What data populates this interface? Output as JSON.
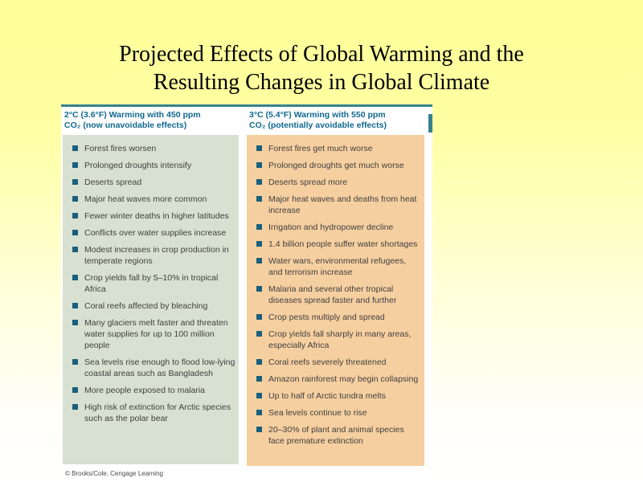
{
  "slide": {
    "title": {
      "line1": "Projected Effects of Global Warming and the",
      "line2": "Resulting Changes in Global Climate"
    },
    "figure": {
      "columns": [
        {
          "id": "450ppm",
          "header_line1": "2°C (3.6°F) Warming with 450 ppm",
          "header_line2": "CO₂ (now unavoidable effects)",
          "items": [
            "Forest fires worsen",
            "Prolonged droughts intensify",
            "Deserts spread",
            "Major heat waves more common",
            "Fewer winter deaths in higher latitudes",
            "Conflicts over water supplies increase",
            "Modest increases in crop production in temperate regions",
            "Crop yields fall by 5–10% in tropical Africa",
            "Coral reefs affected by bleaching",
            "Many glaciers melt faster and threaten water supplies for up to 100 million people",
            "Sea levels rise enough to flood low-lying coastal areas such as Bangladesh",
            "More people exposed to malaria",
            "High risk of extinction for Arctic species such as the polar bear"
          ]
        },
        {
          "id": "550ppm",
          "header_line1": "3°C (5.4°F) Warming with 550 ppm",
          "header_line2": "CO₂ (potentially avoidable effects)",
          "items": [
            "Forest fires get much worse",
            "Prolonged droughts get much worse",
            "Deserts spread more",
            "Major heat waves and deaths from heat increase",
            "Irrigation and hydropower decline",
            "1.4 billion people suffer water shortages",
            "Water wars, environmental refugees, and terrorism increase",
            "Malaria and several other tropical diseases spread faster and further",
            "Crop pests multiply and spread",
            "Crop yields fall sharply in many areas, especially Africa",
            "Coral reefs severely threatened",
            "Amazon rainforest may begin collapsing",
            "Up to half of Arctic tundra melts",
            "Sea levels continue to rise",
            "20–30% of plant and animal species face premature extinction"
          ]
        }
      ],
      "credit": "© Brooks/Cole, Cengage Learning"
    },
    "colors": {
      "background_top": "#ffff99",
      "background_bottom": "#ffffff",
      "accent_teal": "#35828e",
      "header_text": "#10688e",
      "left_panel_bg": "#d8e1d1",
      "right_panel_bg": "#f6cfa0",
      "bullet": "#1a5f7e",
      "body_text": "#404040",
      "credit_text": "#4a4a4a"
    }
  }
}
